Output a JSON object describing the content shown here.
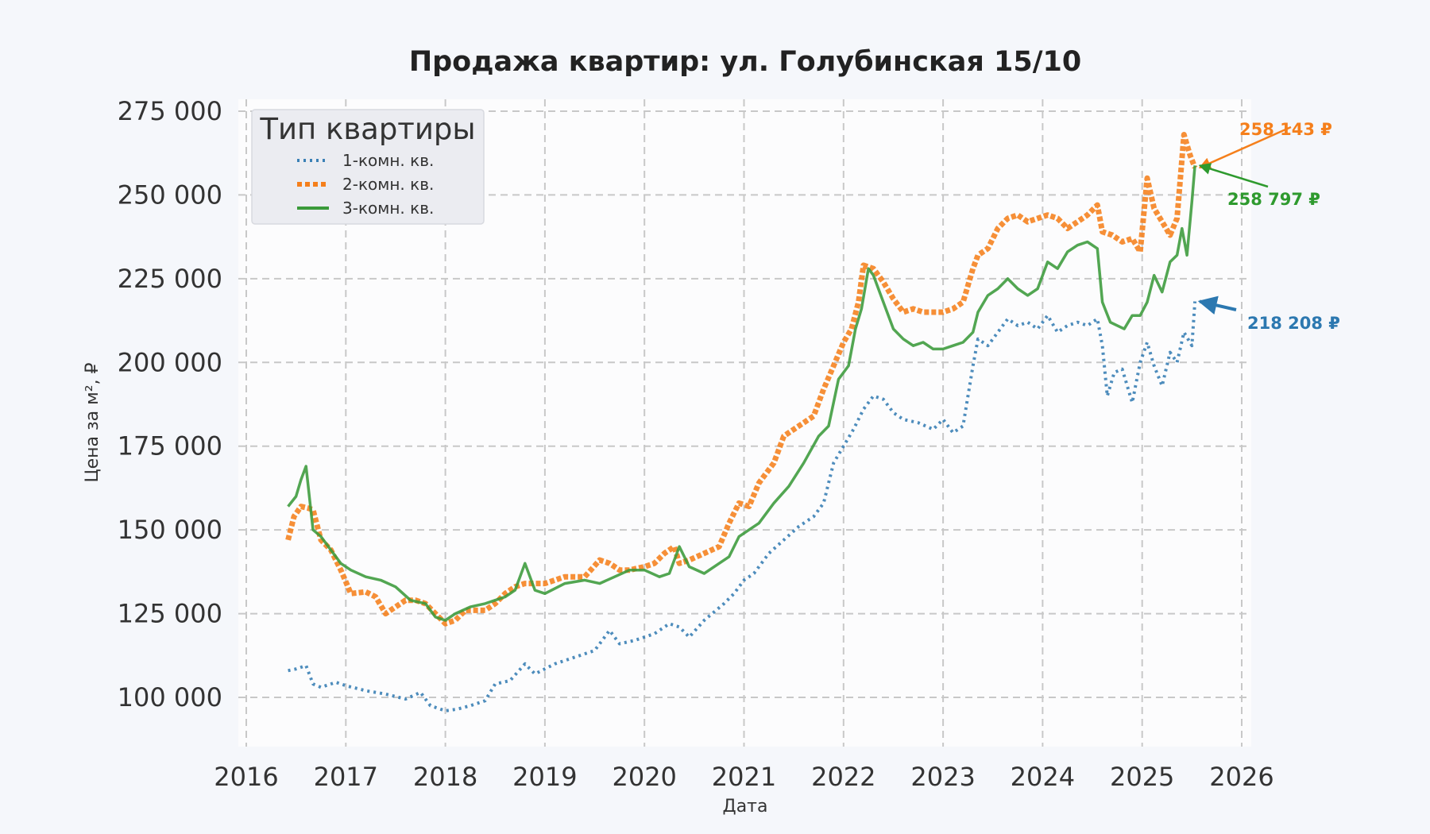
{
  "chart_data": {
    "type": "line",
    "title": "Продажа квартир: ул. Голубинская 15/10",
    "xlabel": "Дата",
    "ylabel": "Цена за м², ₽",
    "xlim": [
      2016.0,
      2026.0
    ],
    "ylim": [
      88000,
      278000
    ],
    "x_ticks": [
      "2016",
      "2017",
      "2018",
      "2019",
      "2020",
      "2021",
      "2022",
      "2023",
      "2024",
      "2025",
      "2026"
    ],
    "y_ticks": [
      "100 000",
      "125 000",
      "150 000",
      "175 000",
      "200 000",
      "225 000",
      "250 000",
      "275 000"
    ],
    "y_tick_values": [
      100000,
      125000,
      150000,
      175000,
      200000,
      225000,
      250000,
      275000
    ],
    "grid": true,
    "legend": {
      "title": "Тип квартиры",
      "placement": "top-left"
    },
    "series": [
      {
        "name": "1-комн. кв.",
        "color": "#3a80b5",
        "style": "dotted",
        "x": [
          2016.42,
          2016.5,
          2016.6,
          2016.67,
          2016.75,
          2016.9,
          2017.0,
          2017.2,
          2017.4,
          2017.6,
          2017.75,
          2017.85,
          2018.0,
          2018.12,
          2018.25,
          2018.4,
          2018.5,
          2018.65,
          2018.8,
          2018.9,
          2019.1,
          2019.3,
          2019.5,
          2019.65,
          2019.75,
          2019.9,
          2020.1,
          2020.25,
          2020.35,
          2020.45,
          2020.6,
          2020.8,
          2020.9,
          2021.0,
          2021.1,
          2021.25,
          2021.4,
          2021.55,
          2021.7,
          2021.8,
          2021.9,
          2022.0,
          2022.1,
          2022.2,
          2022.3,
          2022.4,
          2022.5,
          2022.6,
          2022.75,
          2022.9,
          2023.0,
          2023.1,
          2023.2,
          2023.3,
          2023.35,
          2023.45,
          2023.55,
          2023.65,
          2023.75,
          2023.85,
          2023.95,
          2024.05,
          2024.15,
          2024.25,
          2024.35,
          2024.45,
          2024.55,
          2024.6,
          2024.65,
          2024.72,
          2024.8,
          2024.9,
          2024.98,
          2025.05,
          2025.12,
          2025.2,
          2025.28,
          2025.35,
          2025.42,
          2025.5,
          2025.53
        ],
        "values": [
          108000,
          108500,
          109500,
          104000,
          103000,
          104500,
          103500,
          102000,
          101000,
          99500,
          101500,
          97500,
          96000,
          96500,
          97500,
          99000,
          104000,
          105000,
          110000,
          107000,
          110000,
          112000,
          114000,
          120000,
          116000,
          117000,
          119000,
          122000,
          121000,
          118000,
          123000,
          128000,
          131000,
          135000,
          137000,
          143000,
          147000,
          151000,
          154000,
          158000,
          170000,
          175000,
          180000,
          186000,
          190000,
          189000,
          185000,
          183000,
          182000,
          180000,
          183000,
          179000,
          181000,
          199000,
          207000,
          205000,
          209000,
          213000,
          211000,
          212000,
          210000,
          214000,
          209000,
          211000,
          212000,
          211000,
          213000,
          205000,
          190000,
          197000,
          198000,
          188000,
          200000,
          206000,
          199000,
          193000,
          203000,
          200000,
          209000,
          205000,
          218208
        ]
      },
      {
        "name": "2-комн. кв.",
        "color": "#f57f1b",
        "style": "dotted-square",
        "x": [
          2016.42,
          2016.48,
          2016.55,
          2016.62,
          2016.67,
          2016.75,
          2016.85,
          2016.95,
          2017.05,
          2017.2,
          2017.3,
          2017.4,
          2017.5,
          2017.6,
          2017.7,
          2017.8,
          2017.9,
          2018.0,
          2018.1,
          2018.2,
          2018.3,
          2018.4,
          2018.5,
          2018.6,
          2018.7,
          2018.8,
          2018.9,
          2019.0,
          2019.2,
          2019.4,
          2019.55,
          2019.65,
          2019.75,
          2019.85,
          2020.0,
          2020.1,
          2020.2,
          2020.3,
          2020.35,
          2020.45,
          2020.6,
          2020.75,
          2020.85,
          2020.95,
          2021.05,
          2021.15,
          2021.3,
          2021.4,
          2021.55,
          2021.7,
          2021.8,
          2021.9,
          2022.0,
          2022.08,
          2022.15,
          2022.2,
          2022.3,
          2022.4,
          2022.5,
          2022.6,
          2022.7,
          2022.8,
          2022.9,
          2023.0,
          2023.1,
          2023.2,
          2023.3,
          2023.35,
          2023.45,
          2023.55,
          2023.65,
          2023.75,
          2023.85,
          2023.95,
          2024.05,
          2024.15,
          2024.25,
          2024.35,
          2024.45,
          2024.55,
          2024.6,
          2024.7,
          2024.8,
          2024.9,
          2024.98,
          2025.05,
          2025.12,
          2025.2,
          2025.28,
          2025.35,
          2025.42,
          2025.48,
          2025.53
        ],
        "values": [
          147000,
          154000,
          157000,
          156500,
          156000,
          147000,
          144000,
          138000,
          131000,
          131500,
          130000,
          125000,
          127000,
          129000,
          129000,
          128000,
          125000,
          122000,
          123000,
          126000,
          126000,
          126000,
          128000,
          131000,
          133000,
          134000,
          134000,
          134000,
          136000,
          136000,
          141000,
          140000,
          138000,
          138000,
          139000,
          140000,
          143000,
          145000,
          140000,
          141000,
          143000,
          145000,
          152000,
          158000,
          157000,
          164000,
          170000,
          178000,
          181000,
          184000,
          192000,
          199000,
          206000,
          210000,
          218000,
          229000,
          228000,
          224000,
          219000,
          215000,
          216000,
          215000,
          215000,
          215000,
          216000,
          218000,
          228000,
          232000,
          234000,
          240000,
          243000,
          244000,
          242000,
          243000,
          244000,
          243000,
          240000,
          242000,
          244000,
          247000,
          239000,
          238000,
          236000,
          237000,
          233000,
          255000,
          246000,
          242000,
          238000,
          243000,
          268000,
          262000,
          258143
        ]
      },
      {
        "name": "3-комн. кв.",
        "color": "#3a9a3a",
        "style": "solid",
        "x": [
          2016.42,
          2016.5,
          2016.55,
          2016.6,
          2016.67,
          2016.75,
          2016.85,
          2016.95,
          2017.05,
          2017.2,
          2017.35,
          2017.5,
          2017.65,
          2017.8,
          2017.9,
          2018.0,
          2018.1,
          2018.25,
          2018.4,
          2018.5,
          2018.6,
          2018.7,
          2018.8,
          2018.9,
          2019.0,
          2019.2,
          2019.4,
          2019.55,
          2019.7,
          2019.85,
          2020.0,
          2020.15,
          2020.25,
          2020.35,
          2020.45,
          2020.6,
          2020.75,
          2020.85,
          2020.95,
          2021.05,
          2021.15,
          2021.3,
          2021.45,
          2021.6,
          2021.75,
          2021.85,
          2021.95,
          2022.05,
          2022.12,
          2022.18,
          2022.25,
          2022.3,
          2022.4,
          2022.5,
          2022.6,
          2022.7,
          2022.8,
          2022.9,
          2023.0,
          2023.1,
          2023.2,
          2023.3,
          2023.35,
          2023.45,
          2023.55,
          2023.65,
          2023.75,
          2023.85,
          2023.95,
          2024.05,
          2024.15,
          2024.25,
          2024.35,
          2024.45,
          2024.55,
          2024.6,
          2024.68,
          2024.75,
          2024.82,
          2024.9,
          2024.98,
          2025.05,
          2025.12,
          2025.2,
          2025.28,
          2025.35,
          2025.4,
          2025.45,
          2025.5,
          2025.53
        ],
        "values": [
          157000,
          160000,
          165000,
          169000,
          150000,
          148000,
          144000,
          140000,
          138000,
          136000,
          135000,
          133000,
          129000,
          128000,
          124000,
          123000,
          125000,
          127000,
          128000,
          129000,
          130000,
          132000,
          140000,
          132000,
          131000,
          134000,
          135000,
          134000,
          136000,
          138000,
          138000,
          136000,
          137000,
          145000,
          139000,
          137000,
          140000,
          142000,
          148000,
          150000,
          152000,
          158000,
          163000,
          170000,
          178000,
          181000,
          195000,
          199000,
          210000,
          216000,
          228000,
          226000,
          218000,
          210000,
          207000,
          205000,
          206000,
          204000,
          204000,
          205000,
          206000,
          209000,
          215000,
          220000,
          222000,
          225000,
          222000,
          220000,
          222000,
          230000,
          228000,
          233000,
          235000,
          236000,
          234000,
          218000,
          212000,
          211000,
          210000,
          214000,
          214000,
          218000,
          226000,
          221000,
          230000,
          232000,
          240000,
          232000,
          248000,
          258797
        ]
      }
    ],
    "annotations": [
      {
        "text": "258 143 ₽",
        "color": "#f57f1b",
        "series": 1
      },
      {
        "text": "258 797 ₽",
        "color": "#2e9a2e",
        "series": 2
      },
      {
        "text": "218 208 ₽",
        "color": "#2c78b0",
        "series": 0
      }
    ]
  }
}
